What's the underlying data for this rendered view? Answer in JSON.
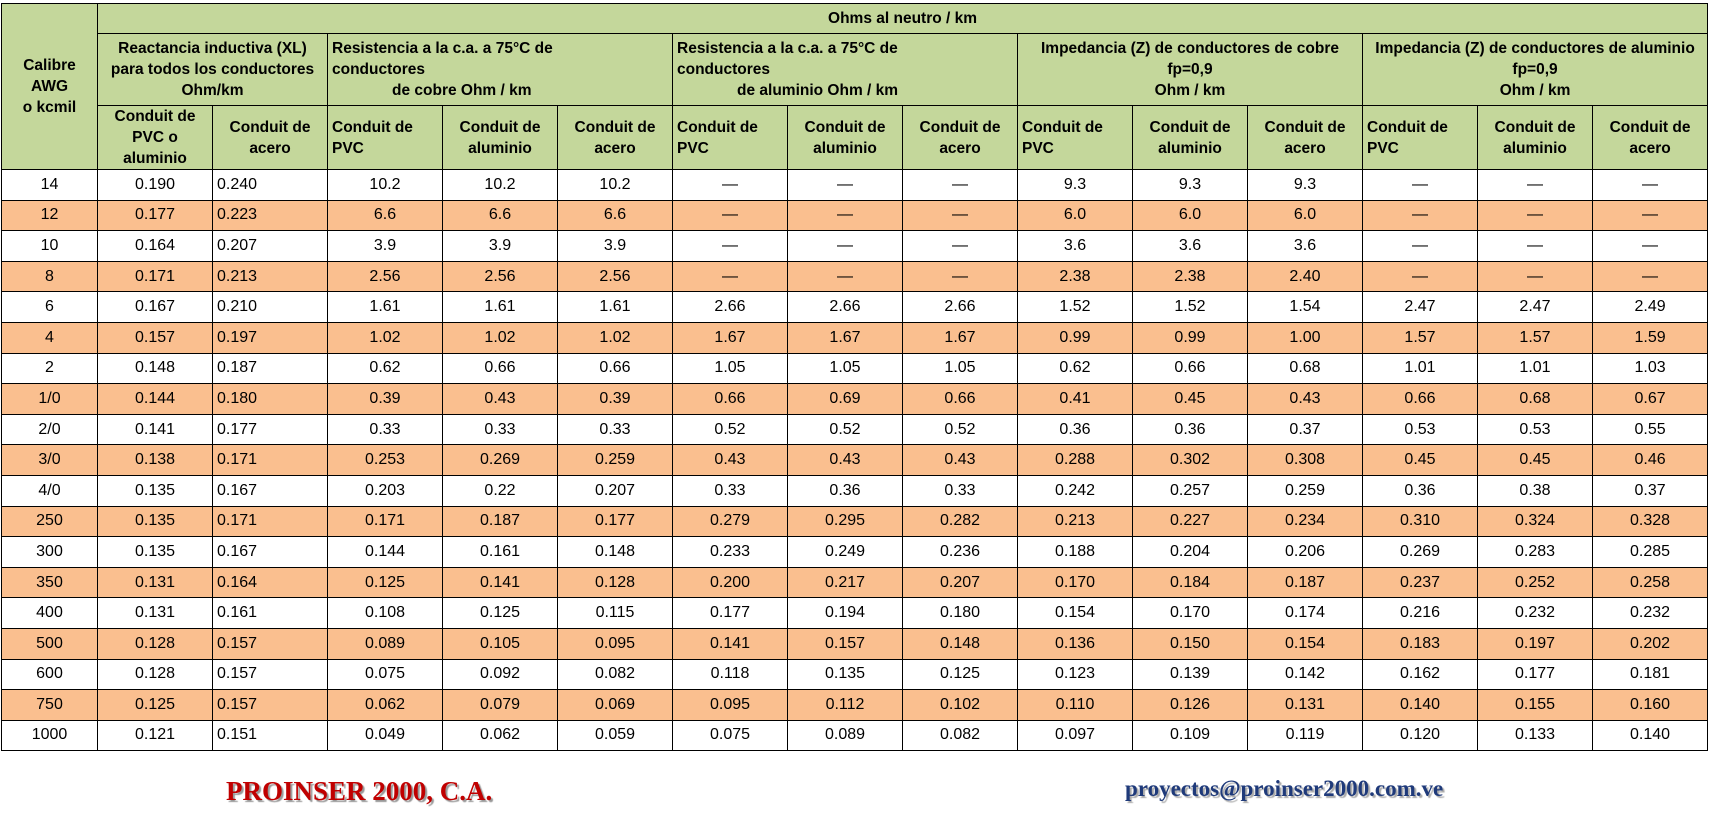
{
  "table": {
    "corner": [
      "Calibre",
      "AWG",
      "o kcmil"
    ],
    "super_header": "Ohms al neutro / km",
    "groups": [
      {
        "lines": [
          "Reactancia inductiva (XL)",
          "para todos los conductores",
          "Ohm/km"
        ],
        "columns": [
          [
            "Conduit de",
            "PVC o",
            "aluminio"
          ],
          [
            "Conduit de",
            "acero"
          ]
        ]
      },
      {
        "lines": [
          "Resistencia a la c.a. a 75°C de",
          "conductores",
          "de cobre Ohm / km"
        ],
        "columns": [
          [
            "Conduit de",
            "PVC"
          ],
          [
            "Conduit de",
            "aluminio"
          ],
          [
            "Conduit de",
            "acero"
          ]
        ]
      },
      {
        "lines": [
          "Resistencia a la c.a. a 75°C de",
          "conductores",
          "de aluminio Ohm / km"
        ],
        "columns": [
          [
            "Conduit de",
            "PVC"
          ],
          [
            "Conduit de",
            "aluminio"
          ],
          [
            "Conduit de",
            "acero"
          ]
        ]
      },
      {
        "lines": [
          "Impedancia (Z) de conductores de cobre",
          "fp=0,9",
          "Ohm / km"
        ],
        "columns": [
          [
            "Conduit de",
            "PVC"
          ],
          [
            "Conduit de",
            "aluminio"
          ],
          [
            "Conduit de",
            "acero"
          ]
        ]
      },
      {
        "lines": [
          "Impedancia (Z) de conductores de aluminio",
          "fp=0,9",
          "Ohm / km"
        ],
        "columns": [
          [
            "Conduit de",
            "PVC"
          ],
          [
            "Conduit de",
            "aluminio"
          ],
          [
            "Conduit de",
            "acero"
          ]
        ]
      }
    ],
    "rows": [
      [
        "14",
        "0.190",
        "0.240",
        "10.2",
        "10.2",
        "10.2",
        "—",
        "—",
        "—",
        "9.3",
        "9.3",
        "9.3",
        "—",
        "—",
        "—"
      ],
      [
        "12",
        "0.177",
        "0.223",
        "6.6",
        "6.6",
        "6.6",
        "—",
        "—",
        "—",
        "6.0",
        "6.0",
        "6.0",
        "—",
        "—",
        "—"
      ],
      [
        "10",
        "0.164",
        "0.207",
        "3.9",
        "3.9",
        "3.9",
        "—",
        "—",
        "—",
        "3.6",
        "3.6",
        "3.6",
        "—",
        "—",
        "—"
      ],
      [
        "8",
        "0.171",
        "0.213",
        "2.56",
        "2.56",
        "2.56",
        "—",
        "—",
        "—",
        "2.38",
        "2.38",
        "2.40",
        "—",
        "—",
        "—"
      ],
      [
        "6",
        "0.167",
        "0.210",
        "1.61",
        "1.61",
        "1.61",
        "2.66",
        "2.66",
        "2.66",
        "1.52",
        "1.52",
        "1.54",
        "2.47",
        "2.47",
        "2.49"
      ],
      [
        "4",
        "0.157",
        "0.197",
        "1.02",
        "1.02",
        "1.02",
        "1.67",
        "1.67",
        "1.67",
        "0.99",
        "0.99",
        "1.00",
        "1.57",
        "1.57",
        "1.59"
      ],
      [
        "2",
        "0.148",
        "0.187",
        "0.62",
        "0.66",
        "0.66",
        "1.05",
        "1.05",
        "1.05",
        "0.62",
        "0.66",
        "0.68",
        "1.01",
        "1.01",
        "1.03"
      ],
      [
        "1/0",
        "0.144",
        "0.180",
        "0.39",
        "0.43",
        "0.39",
        "0.66",
        "0.69",
        "0.66",
        "0.41",
        "0.45",
        "0.43",
        "0.66",
        "0.68",
        "0.67"
      ],
      [
        "2/0",
        "0.141",
        "0.177",
        "0.33",
        "0.33",
        "0.33",
        "0.52",
        "0.52",
        "0.52",
        "0.36",
        "0.36",
        "0.37",
        "0.53",
        "0.53",
        "0.55"
      ],
      [
        "3/0",
        "0.138",
        "0.171",
        "0.253",
        "0.269",
        "0.259",
        "0.43",
        "0.43",
        "0.43",
        "0.288",
        "0.302",
        "0.308",
        "0.45",
        "0.45",
        "0.46"
      ],
      [
        "4/0",
        "0.135",
        "0.167",
        "0.203",
        "0.22",
        "0.207",
        "0.33",
        "0.36",
        "0.33",
        "0.242",
        "0.257",
        "0.259",
        "0.36",
        "0.38",
        "0.37"
      ],
      [
        "250",
        "0.135",
        "0.171",
        "0.171",
        "0.187",
        "0.177",
        "0.279",
        "0.295",
        "0.282",
        "0.213",
        "0.227",
        "0.234",
        "0.310",
        "0.324",
        "0.328"
      ],
      [
        "300",
        "0.135",
        "0.167",
        "0.144",
        "0.161",
        "0.148",
        "0.233",
        "0.249",
        "0.236",
        "0.188",
        "0.204",
        "0.206",
        "0.269",
        "0.283",
        "0.285"
      ],
      [
        "350",
        "0.131",
        "0.164",
        "0.125",
        "0.141",
        "0.128",
        "0.200",
        "0.217",
        "0.207",
        "0.170",
        "0.184",
        "0.187",
        "0.237",
        "0.252",
        "0.258"
      ],
      [
        "400",
        "0.131",
        "0.161",
        "0.108",
        "0.125",
        "0.115",
        "0.177",
        "0.194",
        "0.180",
        "0.154",
        "0.170",
        "0.174",
        "0.216",
        "0.232",
        "0.232"
      ],
      [
        "500",
        "0.128",
        "0.157",
        "0.089",
        "0.105",
        "0.095",
        "0.141",
        "0.157",
        "0.148",
        "0.136",
        "0.150",
        "0.154",
        "0.183",
        "0.197",
        "0.202"
      ],
      [
        "600",
        "0.128",
        "0.157",
        "0.075",
        "0.092",
        "0.082",
        "0.118",
        "0.135",
        "0.125",
        "0.123",
        "0.139",
        "0.142",
        "0.162",
        "0.177",
        "0.181"
      ],
      [
        "750",
        "0.125",
        "0.157",
        "0.062",
        "0.079",
        "0.069",
        "0.095",
        "0.112",
        "0.102",
        "0.110",
        "0.126",
        "0.131",
        "0.140",
        "0.155",
        "0.160"
      ],
      [
        "1000",
        "0.121",
        "0.151",
        "0.049",
        "0.062",
        "0.059",
        "0.075",
        "0.089",
        "0.082",
        "0.097",
        "0.109",
        "0.119",
        "0.120",
        "0.133",
        "0.140"
      ]
    ]
  },
  "footer": {
    "company": "PROINSER 2000, C.A.",
    "email": "proyectos@proinser2000.com.ve"
  }
}
